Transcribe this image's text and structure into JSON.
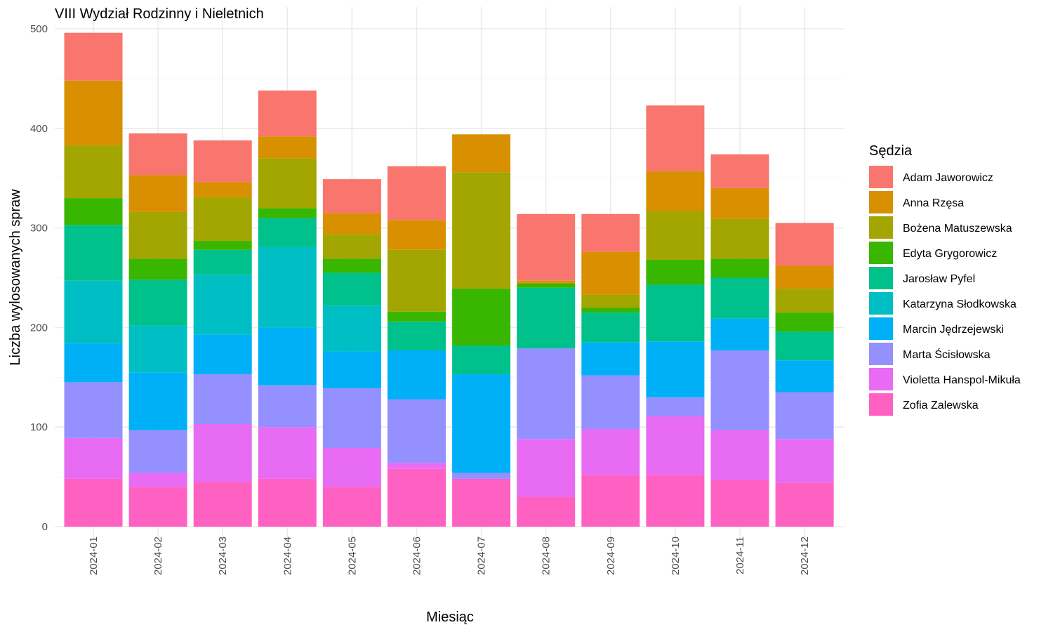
{
  "chart_data": {
    "type": "bar",
    "stacked": true,
    "title": "VIII Wydział Rodzinny i Nieletnich",
    "xlabel": "Miesiąc",
    "ylabel": "Liczba wylosowanych spraw",
    "ylim": [
      0,
      500
    ],
    "yticks": [
      0,
      100,
      200,
      300,
      400,
      500
    ],
    "grid": true,
    "legend_title": "Sędzia",
    "legend_position": "right",
    "categories": [
      "2024-01",
      "2024-02",
      "2024-03",
      "2024-04",
      "2024-05",
      "2024-06",
      "2024-07",
      "2024-08",
      "2024-09",
      "2024-10",
      "2024-11",
      "2024-12"
    ],
    "series": [
      {
        "name": "Zofia Zalewska",
        "color": "#FF61C3",
        "values": [
          48,
          40,
          45,
          48,
          40,
          58,
          48,
          30,
          52,
          52,
          47,
          44
        ]
      },
      {
        "name": "Violetta Hanspol-Mikuła",
        "color": "#E76BF3",
        "values": [
          41,
          14,
          58,
          52,
          39,
          6,
          0,
          58,
          46,
          59,
          50,
          44
        ]
      },
      {
        "name": "Marta Ścisłowska",
        "color": "#9590FF",
        "values": [
          56,
          43,
          50,
          42,
          60,
          64,
          6,
          91,
          54,
          19,
          80,
          47
        ]
      },
      {
        "name": "Marcin Jędrzejewski",
        "color": "#00B0F6",
        "values": [
          39,
          58,
          40,
          58,
          37,
          49,
          99,
          0,
          33,
          56,
          32,
          32
        ]
      },
      {
        "name": "Katarzyna Słodkowska",
        "color": "#00BFC4",
        "values": [
          63,
          47,
          60,
          81,
          46,
          0,
          0,
          0,
          0,
          0,
          0,
          0
        ]
      },
      {
        "name": "Jarosław Pyfel",
        "color": "#00C08B",
        "values": [
          56,
          46,
          25,
          29,
          33,
          29,
          29,
          61,
          30,
          57,
          41,
          29
        ]
      },
      {
        "name": "Edyta Grygorowicz",
        "color": "#39B600",
        "values": [
          27,
          21,
          9,
          10,
          14,
          10,
          57,
          4,
          5,
          25,
          19,
          19
        ]
      },
      {
        "name": "Bożena Matuszewska",
        "color": "#A3A500",
        "values": [
          53,
          47,
          44,
          50,
          25,
          62,
          117,
          1,
          13,
          49,
          40,
          24
        ]
      },
      {
        "name": "Anna Rzęsa",
        "color": "#D89000",
        "values": [
          65,
          37,
          15,
          22,
          21,
          30,
          38,
          2,
          43,
          40,
          31,
          23
        ]
      },
      {
        "name": "Adam Jaworowicz",
        "color": "#F8766D",
        "values": [
          48,
          42,
          42,
          46,
          34,
          54,
          0,
          67,
          38,
          66,
          34,
          43
        ]
      }
    ]
  }
}
